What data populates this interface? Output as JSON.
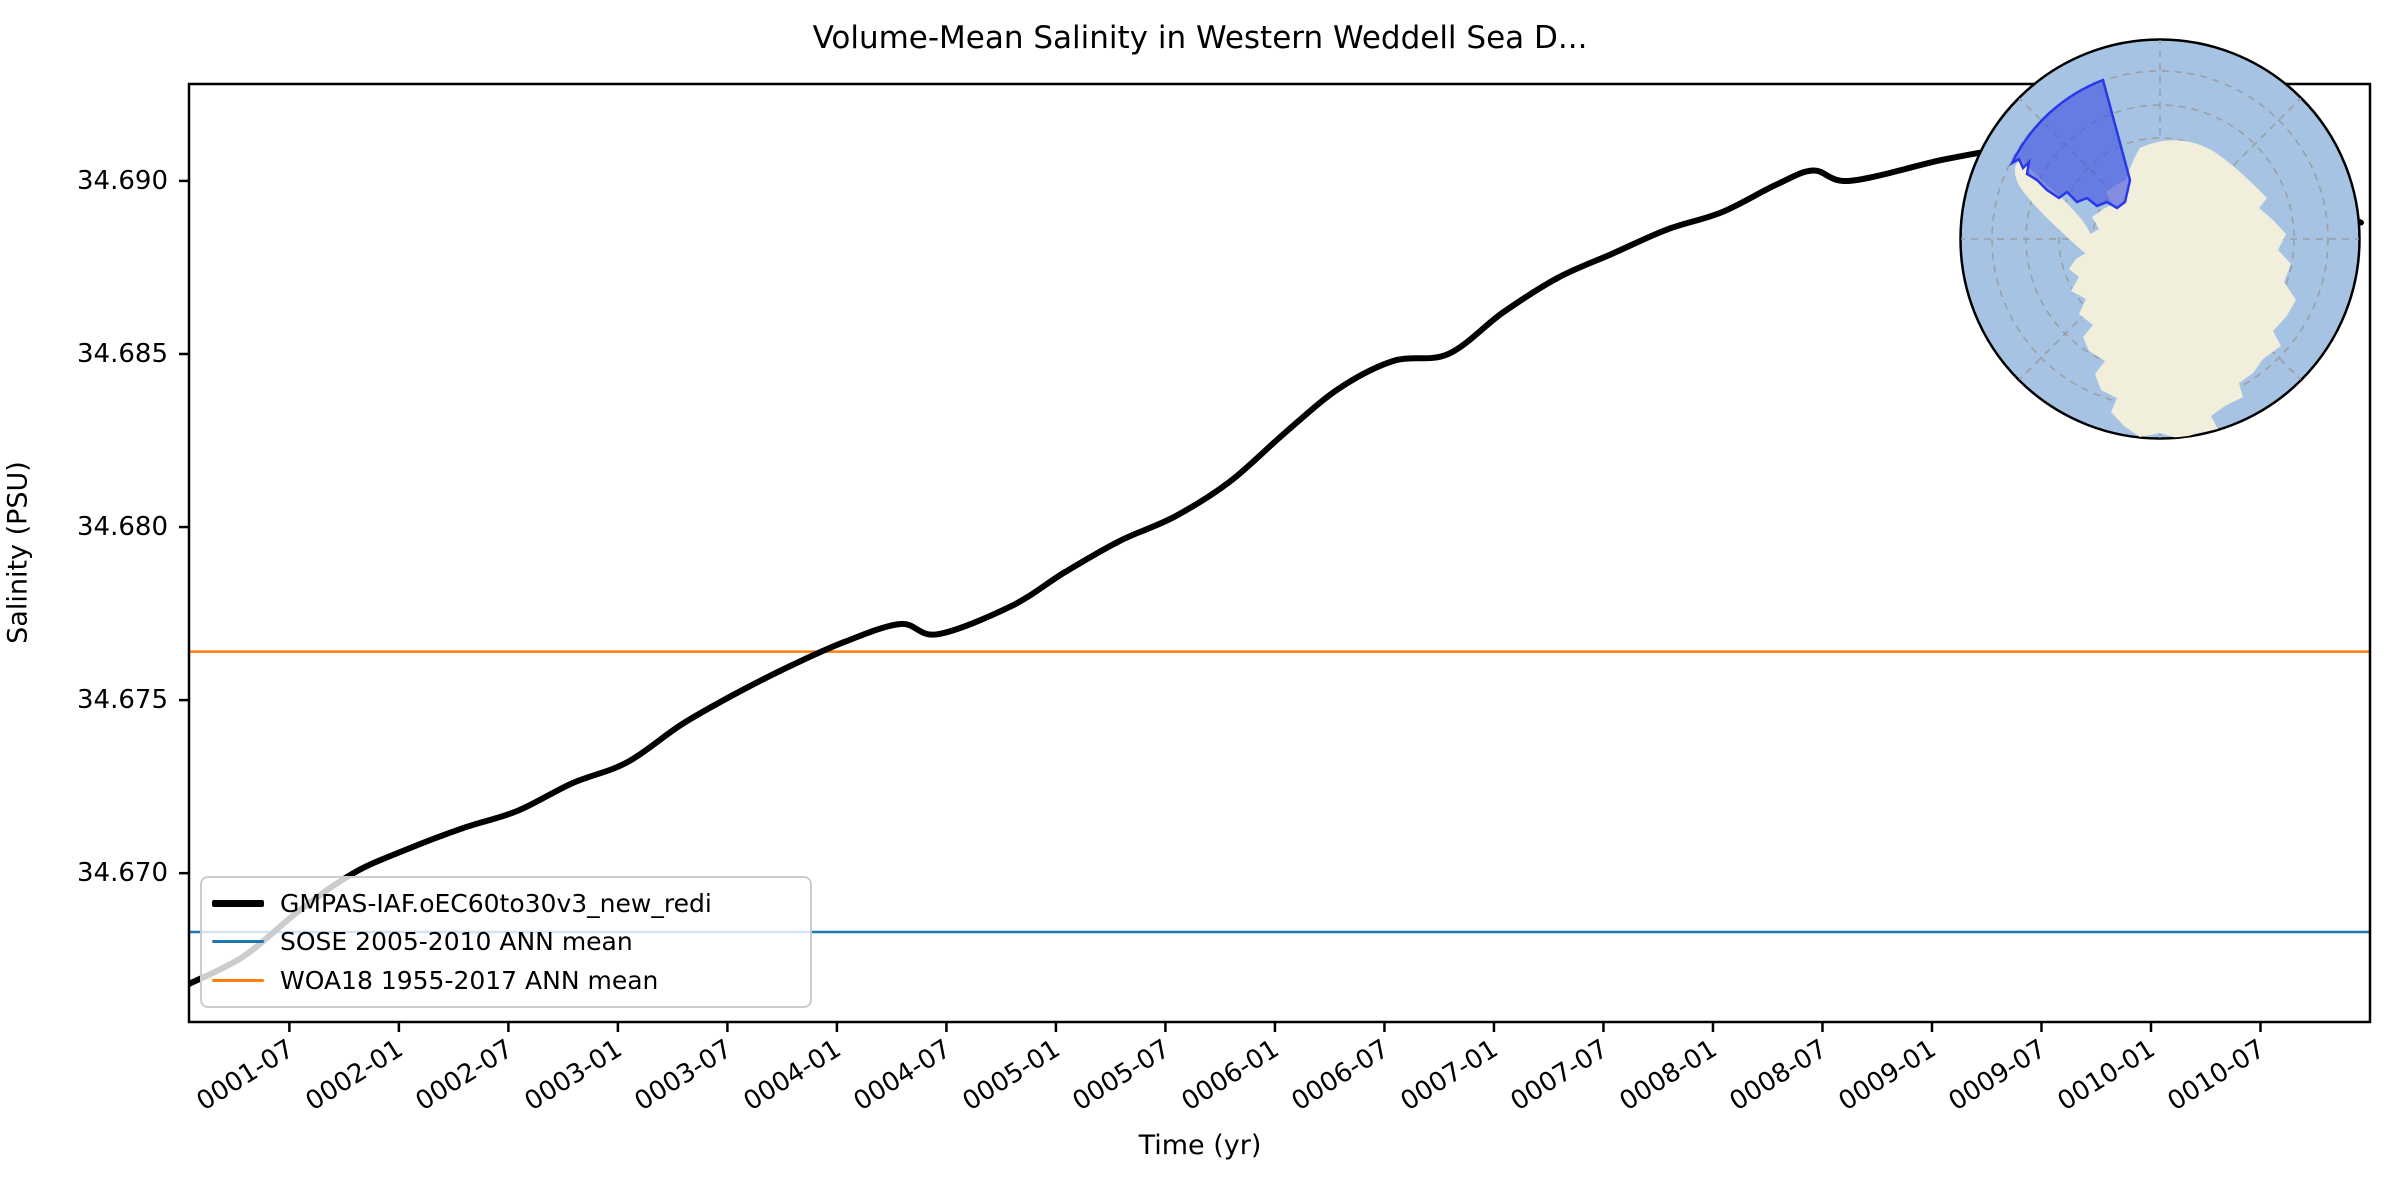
{
  "title": "Volume-Mean Salinity in Western Weddell Sea D...",
  "axes": {
    "xlabel": "Time (yr)",
    "ylabel": "Salinity (PSU)"
  },
  "legend": {
    "entries": [
      {
        "label": "GMPAS-IAF.oEC60to30v3_new_redi",
        "color": "#000000",
        "line_width": 7
      },
      {
        "label": "SOSE 2005-2010 ANN mean",
        "color": "#1f77b4",
        "line_width": 3
      },
      {
        "label": "WOA18 1955-2017 ANN mean",
        "color": "#ff7f0e",
        "line_width": 3
      }
    ]
  },
  "chart_data": {
    "type": "line",
    "title": "Volume-Mean Salinity in Western Weddell Sea D...",
    "xlabel": "Time (yr)",
    "ylabel": "Salinity (PSU)",
    "x_unit": "model date (YYYY-MM), t = months since 0001-01 (mid-month)",
    "xlim_months": [
      0.5,
      120
    ],
    "ylim": [
      34.6657,
      34.6928
    ],
    "grid": false,
    "legend_position": "lower left",
    "xticks": [
      {
        "label": "0001-07",
        "t": 6
      },
      {
        "label": "0002-01",
        "t": 12
      },
      {
        "label": "0002-07",
        "t": 18
      },
      {
        "label": "0003-01",
        "t": 24
      },
      {
        "label": "0003-07",
        "t": 30
      },
      {
        "label": "0004-01",
        "t": 36
      },
      {
        "label": "0004-07",
        "t": 42
      },
      {
        "label": "0005-01",
        "t": 48
      },
      {
        "label": "0005-07",
        "t": 54
      },
      {
        "label": "0006-01",
        "t": 60
      },
      {
        "label": "0006-07",
        "t": 66
      },
      {
        "label": "0007-01",
        "t": 72
      },
      {
        "label": "0007-07",
        "t": 78
      },
      {
        "label": "0008-01",
        "t": 84
      },
      {
        "label": "0008-07",
        "t": 90
      },
      {
        "label": "0009-01",
        "t": 96
      },
      {
        "label": "0009-07",
        "t": 102
      },
      {
        "label": "0010-01",
        "t": 108
      },
      {
        "label": "0010-07",
        "t": 114
      }
    ],
    "yticks": [
      {
        "label": "34.690",
        "v": 34.69
      },
      {
        "label": "34.685",
        "v": 34.685
      },
      {
        "label": "34.680",
        "v": 34.68
      },
      {
        "label": "34.675",
        "v": 34.675
      },
      {
        "label": "34.670",
        "v": 34.67
      }
    ],
    "series": [
      {
        "name": "GMPAS-IAF.oEC60to30v3_new_redi",
        "type": "line",
        "color": "#000000",
        "points": [
          {
            "t": 0.5,
            "date": "0001-01",
            "v": 34.6668
          },
          {
            "t": 3.5,
            "date": "0001-04",
            "v": 34.6676
          },
          {
            "t": 6.5,
            "date": "0001-07",
            "v": 34.6689
          },
          {
            "t": 9.5,
            "date": "0001-10",
            "v": 34.67
          },
          {
            "t": 12.5,
            "date": "0002-01",
            "v": 34.6707
          },
          {
            "t": 15.5,
            "date": "0002-04",
            "v": 34.6713
          },
          {
            "t": 18.5,
            "date": "0002-07",
            "v": 34.6718
          },
          {
            "t": 21.5,
            "date": "0002-10",
            "v": 34.6726
          },
          {
            "t": 24.5,
            "date": "0003-01",
            "v": 34.6732
          },
          {
            "t": 27.5,
            "date": "0003-04",
            "v": 34.6743
          },
          {
            "t": 30.5,
            "date": "0003-07",
            "v": 34.6752
          },
          {
            "t": 33.5,
            "date": "0003-10",
            "v": 34.676
          },
          {
            "t": 36.5,
            "date": "0004-01",
            "v": 34.6767
          },
          {
            "t": 39.5,
            "date": "0004-04",
            "v": 34.6772
          },
          {
            "t": 41.5,
            "date": "0004-06",
            "v": 34.6769
          },
          {
            "t": 45.5,
            "date": "0004-10",
            "v": 34.6777
          },
          {
            "t": 48.5,
            "date": "0005-01",
            "v": 34.6787
          },
          {
            "t": 51.5,
            "date": "0005-04",
            "v": 34.6796
          },
          {
            "t": 54.5,
            "date": "0005-07",
            "v": 34.6803
          },
          {
            "t": 57.5,
            "date": "0005-10",
            "v": 34.6813
          },
          {
            "t": 60.5,
            "date": "0006-01",
            "v": 34.6827
          },
          {
            "t": 63.5,
            "date": "0006-04",
            "v": 34.684
          },
          {
            "t": 66.5,
            "date": "0006-07",
            "v": 34.6848
          },
          {
            "t": 69.5,
            "date": "0006-10",
            "v": 34.685
          },
          {
            "t": 72.5,
            "date": "0007-01",
            "v": 34.6862
          },
          {
            "t": 75.5,
            "date": "0007-04",
            "v": 34.6872
          },
          {
            "t": 78.5,
            "date": "0007-07",
            "v": 34.6879
          },
          {
            "t": 81.5,
            "date": "0007-10",
            "v": 34.6886
          },
          {
            "t": 84.5,
            "date": "0008-01",
            "v": 34.6891
          },
          {
            "t": 87.5,
            "date": "0008-04",
            "v": 34.6899
          },
          {
            "t": 89.5,
            "date": "0008-06",
            "v": 34.6903
          },
          {
            "t": 91.5,
            "date": "0008-08",
            "v": 34.69
          },
          {
            "t": 96.5,
            "date": "0009-01",
            "v": 34.6906
          },
          {
            "t": 99.5,
            "date": "0009-04",
            "v": 34.6909
          },
          {
            "t": 102.5,
            "date": "0009-07",
            "v": 34.6912
          },
          {
            "t": 105.5,
            "date": "0009-10",
            "v": 34.6913
          },
          {
            "t": 108.5,
            "date": "0010-01",
            "v": 34.6911
          },
          {
            "t": 111.5,
            "date": "0010-04",
            "v": 34.6905
          },
          {
            "t": 114.5,
            "date": "0010-07",
            "v": 34.6898
          },
          {
            "t": 117.5,
            "date": "0010-10",
            "v": 34.6892
          },
          {
            "t": 119.5,
            "date": "0010-12",
            "v": 34.6888
          }
        ]
      },
      {
        "name": "SOSE 2005-2010 ANN mean",
        "type": "hline",
        "color": "#1f77b4",
        "value": 34.6683
      },
      {
        "name": "WOA18 1955-2017 ANN mean",
        "type": "hline",
        "color": "#ff7f0e",
        "value": 34.6764
      }
    ]
  },
  "inset_map": {
    "description": "South polar stereographic inset map of Antarctica with the Western Weddell Sea region highlighted in blue",
    "ocean_color": "#a6c3e4",
    "land_color": "#f1efdc",
    "region_fill": "#4150e0",
    "region_stroke": "#2838e8",
    "graticule_color": "#999999",
    "border_color": "#000000"
  }
}
